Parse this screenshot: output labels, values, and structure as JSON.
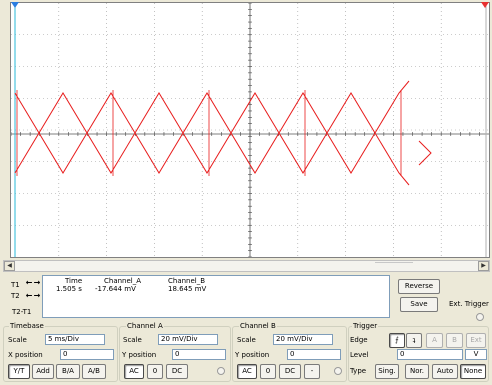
{
  "cursors": {
    "t1_label": "T1",
    "t2_label": "T2",
    "t2t1_label": "T2-T1",
    "left_arrow": "←",
    "right_arrow": "→"
  },
  "readout": {
    "headers": {
      "time": "Time",
      "a": "Channel_A",
      "b": "Channel_B"
    },
    "row1": {
      "time": "1.505 s",
      "a": "-17.644 mV",
      "b": "18.645 mV"
    }
  },
  "buttons": {
    "reverse": "Reverse",
    "save": "Save",
    "ext_trigger": "Ext. Trigger"
  },
  "timebase": {
    "title": "Timebase",
    "scale_label": "Scale",
    "scale_value": "5 ms/Div",
    "xpos_label": "X position",
    "xpos_value": "0",
    "modes": [
      "Y/T",
      "Add",
      "B/A",
      "A/B"
    ]
  },
  "channel_a": {
    "title": "Channel A",
    "scale_label": "Scale",
    "scale_value": "20 mV/Div",
    "ypos_label": "Y position",
    "ypos_value": "0",
    "coupling": [
      "AC",
      "0",
      "DC"
    ]
  },
  "channel_b": {
    "title": "Channel B",
    "scale_label": "Scale",
    "scale_value": "20 mV/Div",
    "ypos_label": "Y position",
    "ypos_value": "0",
    "coupling": [
      "AC",
      "0",
      "DC",
      "-"
    ]
  },
  "trigger": {
    "title": "Trigger",
    "edge_label": "Edge",
    "edge_rising": "⨍",
    "edge_falling": "ʇ",
    "sources": [
      "A",
      "B",
      "Ext"
    ],
    "level_label": "Level",
    "level_value": "0",
    "level_unit": "V",
    "type_label": "Type",
    "types": [
      "Sing.",
      "Nor.",
      "Auto",
      "None"
    ]
  },
  "colors": {
    "trace": "#e81c1c",
    "grid": "#9a9a9a",
    "t1": "#2a7de0",
    "t2": "#e83030"
  }
}
